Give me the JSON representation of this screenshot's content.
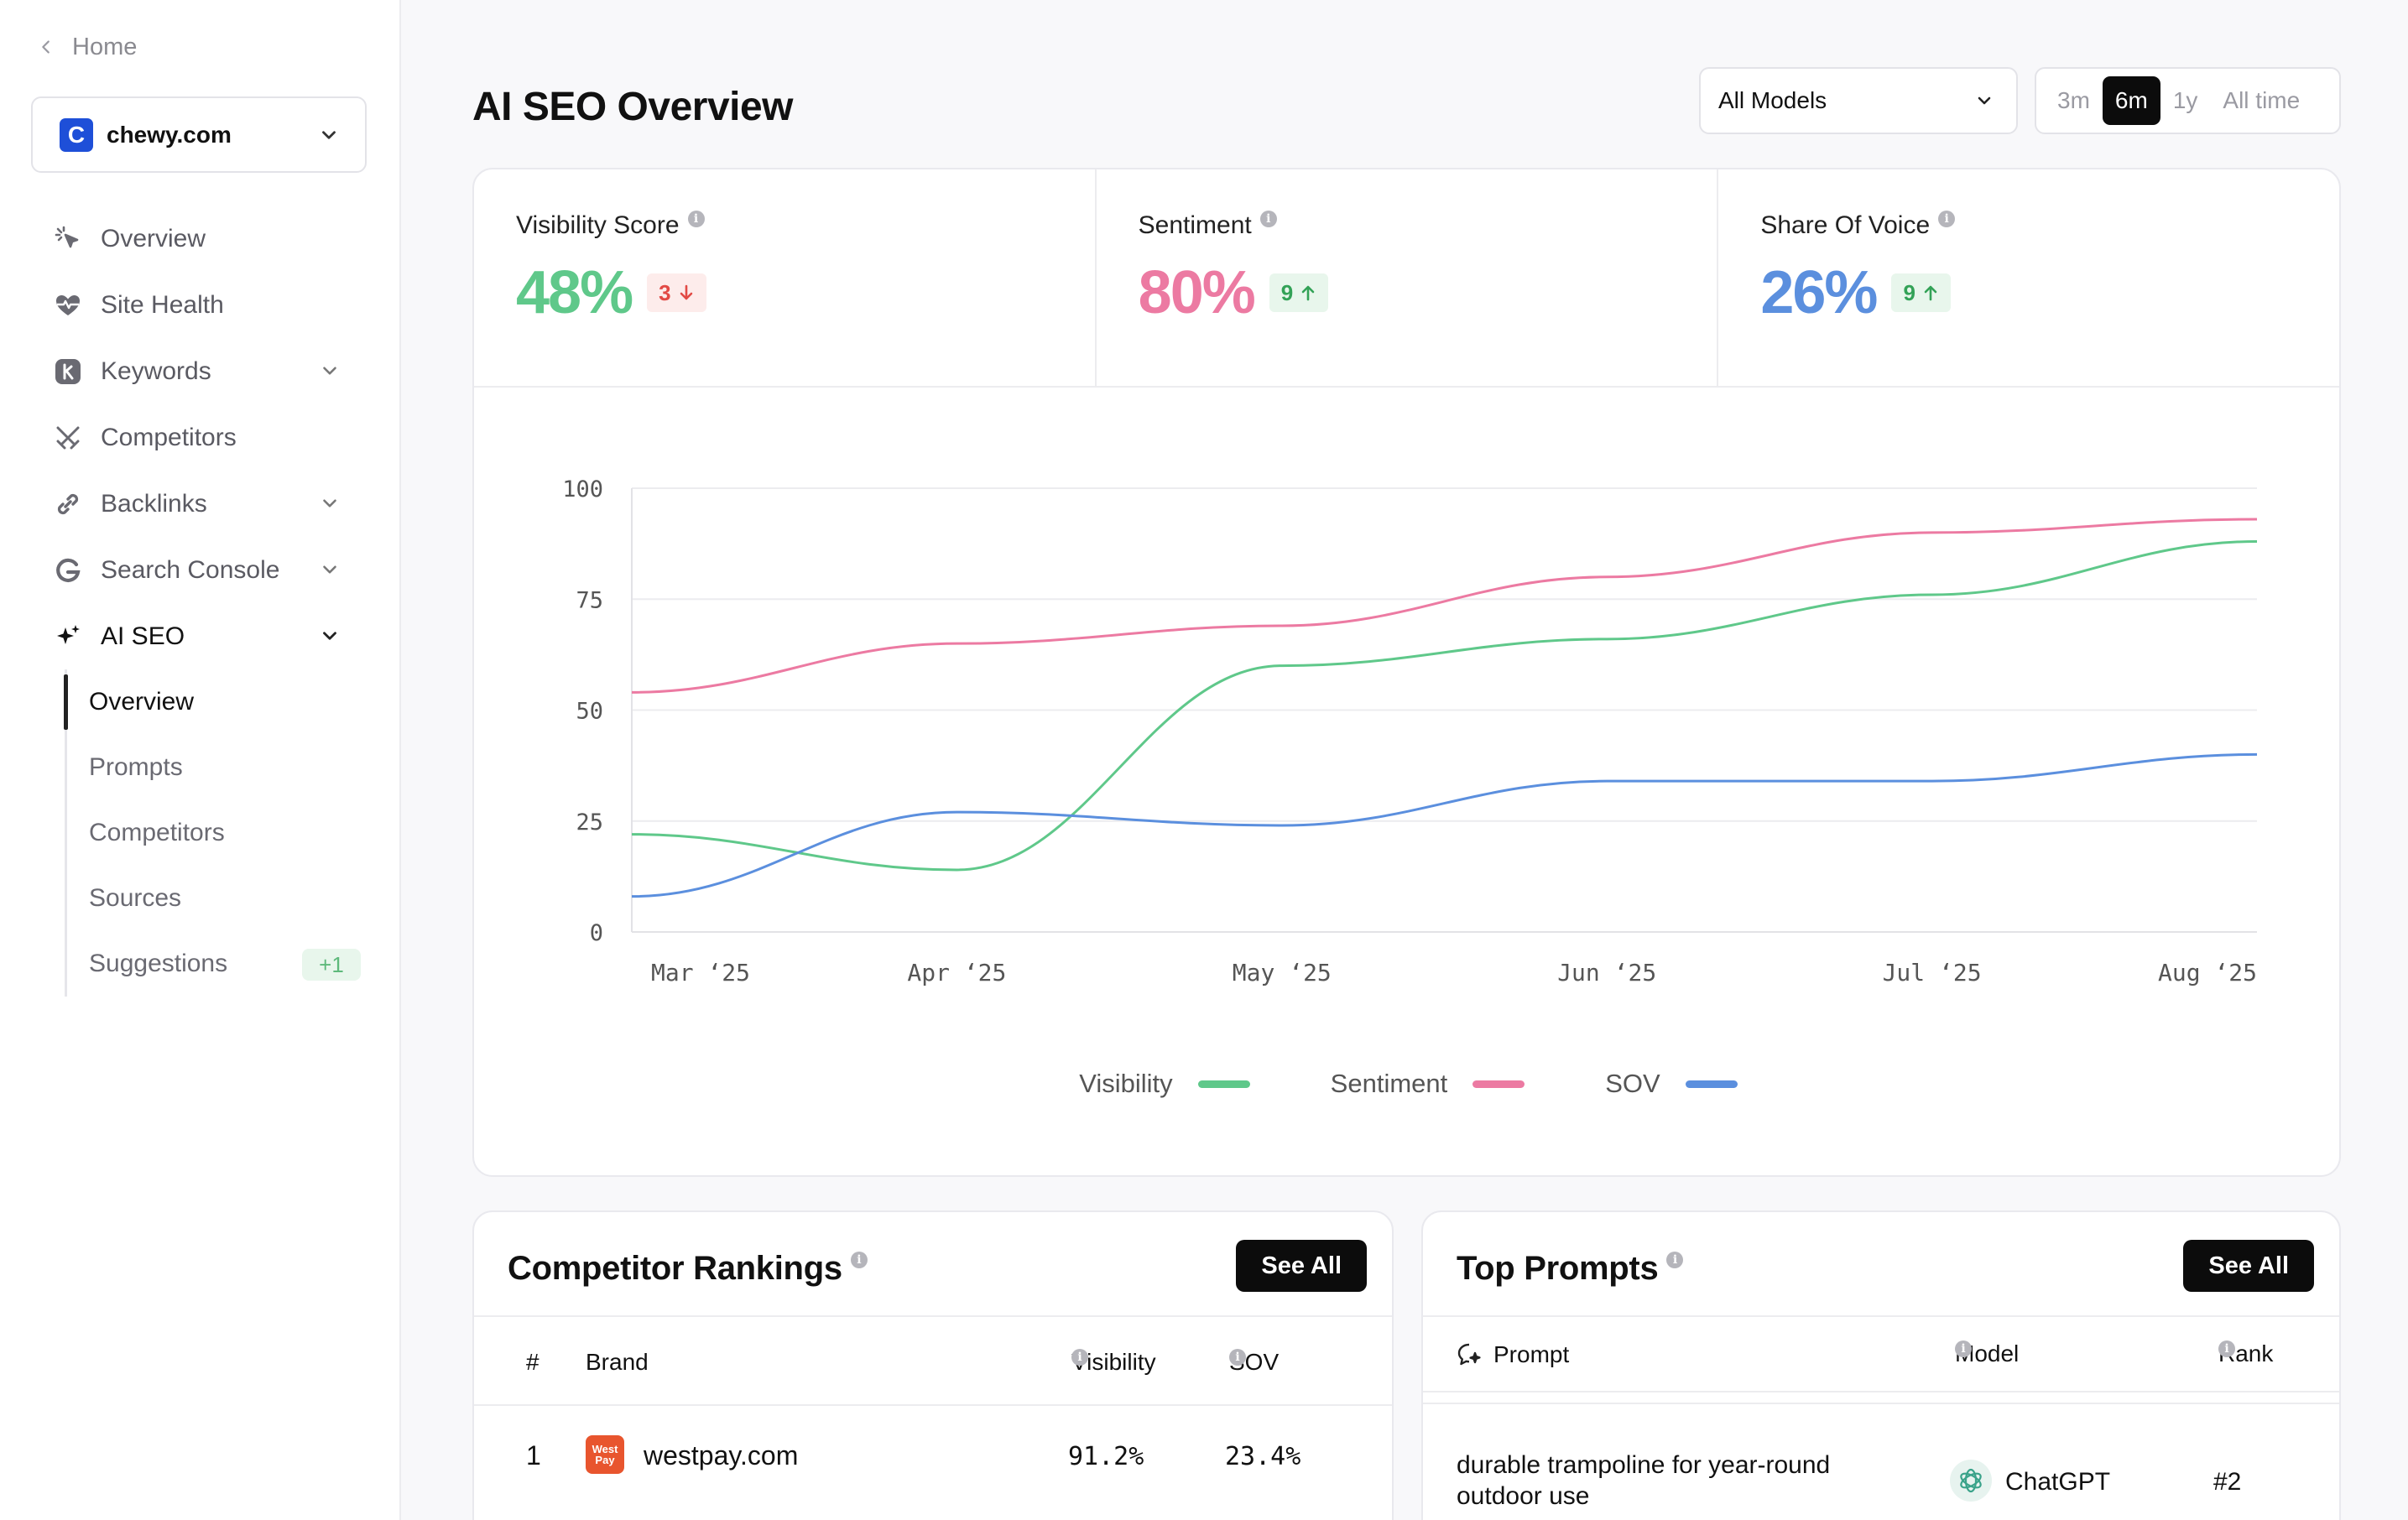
{
  "sidebar": {
    "home_label": "Home",
    "site": {
      "name": "chewy.com",
      "logo_letter": "C"
    },
    "items": [
      {
        "label": "Overview",
        "icon": "cursor-sparkle-icon",
        "has_chevron": false
      },
      {
        "label": "Site Health",
        "icon": "heart-pulse-icon",
        "has_chevron": false
      },
      {
        "label": "Keywords",
        "icon": "k-square-icon",
        "has_chevron": true
      },
      {
        "label": "Competitors",
        "icon": "crossed-swords-icon",
        "has_chevron": false
      },
      {
        "label": "Backlinks",
        "icon": "link-icon",
        "has_chevron": true
      },
      {
        "label": "Search Console",
        "icon": "google-g-icon",
        "has_chevron": true
      },
      {
        "label": "AI SEO",
        "icon": "sparkles-icon",
        "has_chevron": true
      }
    ],
    "ai_seo_subitems": [
      {
        "label": "Overview"
      },
      {
        "label": "Prompts"
      },
      {
        "label": "Competitors"
      },
      {
        "label": "Sources"
      },
      {
        "label": "Suggestions",
        "badge": "+1"
      }
    ]
  },
  "header": {
    "title": "AI SEO Overview",
    "model_select": "All Models",
    "ranges": [
      "3m",
      "6m",
      "1y",
      "All time"
    ],
    "active_range": "6m"
  },
  "stats": [
    {
      "label": "Visibility Score",
      "value": "48%",
      "delta": "3",
      "direction": "down",
      "color": "#5fc88a"
    },
    {
      "label": "Sentiment",
      "value": "80%",
      "delta": "9",
      "direction": "up",
      "color": "#ec7aa2"
    },
    {
      "label": "Share Of Voice",
      "value": "26%",
      "delta": "9",
      "direction": "up",
      "color": "#5b8fde"
    }
  ],
  "chart_data": {
    "type": "line",
    "x": [
      "Mar ‘25",
      "Apr ‘25",
      "May ‘25",
      "Jun ‘25",
      "Jul ‘25",
      "Aug ‘25"
    ],
    "ylim": [
      0,
      100
    ],
    "yticks": [
      0,
      25,
      50,
      75,
      100
    ],
    "grid": true,
    "legend_position": "bottom",
    "series": [
      {
        "name": "Visibility",
        "color": "#5fc88a",
        "values": [
          22,
          14,
          60,
          66,
          76,
          88
        ]
      },
      {
        "name": "Sentiment",
        "color": "#ec7aa2",
        "values": [
          54,
          65,
          69,
          80,
          90,
          93
        ]
      },
      {
        "name": "SOV",
        "color": "#5b8fde",
        "values": [
          8,
          27,
          24,
          34,
          34,
          40
        ]
      }
    ]
  },
  "competitor_rankings": {
    "title": "Competitor Rankings",
    "see_all": "See All",
    "columns": {
      "rank": "#",
      "brand": "Brand",
      "visibility": "Visibility",
      "sov": "SOV"
    },
    "rows": [
      {
        "rank": "1",
        "brand": "westpay.com",
        "logo_text": "West Pay",
        "visibility": "91.2%",
        "sov": "23.4%"
      }
    ]
  },
  "top_prompts": {
    "title": "Top Prompts",
    "see_all": "See All",
    "columns": {
      "prompt": "Prompt",
      "model": "Model",
      "rank": "Rank"
    },
    "rows": [
      {
        "prompt": "durable trampoline for year-round outdoor use",
        "model": "ChatGPT",
        "rank": "#2"
      }
    ]
  }
}
